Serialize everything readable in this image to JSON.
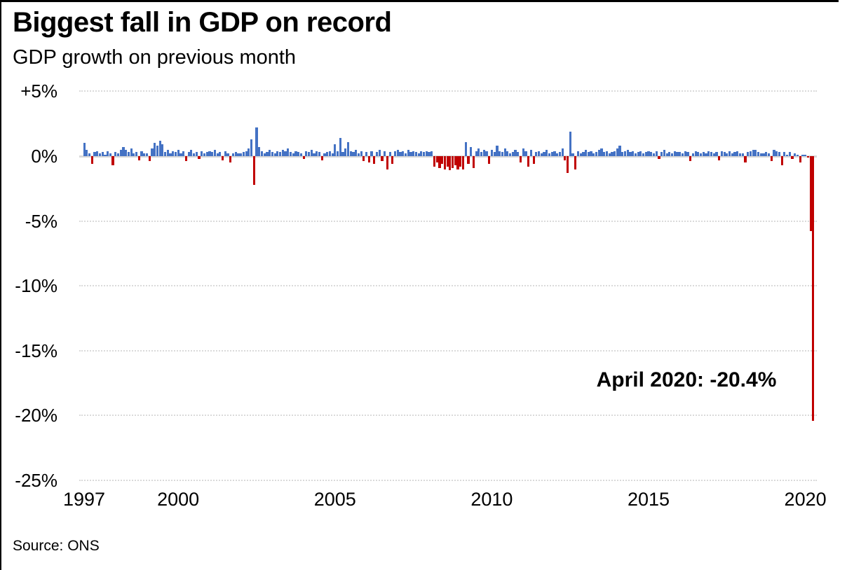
{
  "header": {
    "title": "Biggest fall in GDP on record",
    "subtitle": "GDP growth on previous month"
  },
  "footer": {
    "source": "Source: ONS"
  },
  "colors": {
    "positive_bar": "#4472C4",
    "negative_bar": "#C00000",
    "zero_line": "#d9d9d9",
    "gridline": "#dadada",
    "text": "#000000"
  },
  "chart_data": {
    "type": "bar",
    "title": "Biggest fall in GDP on record",
    "subtitle": "GDP growth on previous month",
    "ylabel": "GDP growth on previous month (%)",
    "xlabel": "",
    "frequency": "monthly",
    "x_start": "1997-01",
    "x_end": "2020-04",
    "ylim": [
      -25,
      5
    ],
    "grid": "horizontal-dotted",
    "legend_position": "none",
    "annotation": {
      "label": "April 2020: -20.4%",
      "date": "2020-04",
      "value": -20.4
    },
    "y_ticks": [
      {
        "label": "+5%",
        "value": 5
      },
      {
        "label": "0%",
        "value": 0
      },
      {
        "label": "-5%",
        "value": -5
      },
      {
        "label": "-10%",
        "value": -10
      },
      {
        "label": "-15%",
        "value": -15
      },
      {
        "label": "-20%",
        "value": -20
      },
      {
        "label": "-25%",
        "value": -25
      }
    ],
    "x_ticks": [
      {
        "label": "1997",
        "year": 1997
      },
      {
        "label": "2000",
        "year": 2000
      },
      {
        "label": "2005",
        "year": 2005
      },
      {
        "label": "2010",
        "year": 2010
      },
      {
        "label": "2015",
        "year": 2015
      },
      {
        "label": "2020",
        "year": 2020
      }
    ],
    "values": [
      1.0,
      0.5,
      0.2,
      -0.6,
      0.3,
      0.4,
      0.2,
      0.3,
      0.1,
      0.4,
      0.2,
      -0.7,
      0.3,
      0.2,
      0.5,
      0.7,
      0.5,
      0.3,
      0.6,
      0.2,
      0.3,
      -0.3,
      0.4,
      0.2,
      0.2,
      -0.4,
      0.6,
      1.0,
      0.8,
      1.2,
      0.9,
      0.3,
      0.5,
      0.2,
      0.4,
      0.3,
      0.5,
      0.2,
      0.4,
      -0.4,
      0.3,
      0.5,
      0.2,
      0.3,
      -0.2,
      0.4,
      0.2,
      0.3,
      0.4,
      0.3,
      0.5,
      0.2,
      0.3,
      -0.3,
      0.4,
      0.2,
      -0.5,
      0.2,
      0.3,
      0.2,
      0.2,
      0.3,
      0.4,
      0.6,
      1.3,
      -2.2,
      2.2,
      0.7,
      0.4,
      0.2,
      0.3,
      0.5,
      0.3,
      0.2,
      0.4,
      0.3,
      0.5,
      0.4,
      0.6,
      0.3,
      0.2,
      0.4,
      0.3,
      0.2,
      -0.2,
      0.4,
      0.3,
      0.5,
      0.2,
      0.4,
      0.3,
      -0.3,
      0.2,
      0.3,
      0.4,
      0.2,
      0.9,
      0.4,
      1.4,
      0.3,
      0.6,
      1.1,
      0.4,
      0.3,
      0.5,
      0.2,
      0.4,
      -0.4,
      0.3,
      -0.5,
      0.4,
      -0.6,
      0.3,
      0.5,
      -0.4,
      0.4,
      -1.0,
      0.3,
      -0.6,
      0.4,
      0.5,
      0.3,
      0.4,
      0.2,
      0.5,
      0.3,
      0.4,
      0.3,
      0.2,
      0.4,
      0.3,
      0.4,
      0.3,
      0.4,
      -0.8,
      -0.5,
      -0.9,
      -0.6,
      -1.0,
      -0.8,
      -1.1,
      -0.9,
      -0.7,
      -1.0,
      -0.8,
      -1.0,
      1.1,
      -0.6,
      0.7,
      -0.9,
      0.4,
      0.6,
      0.3,
      0.5,
      0.4,
      -0.6,
      0.5,
      0.3,
      0.8,
      0.4,
      0.3,
      0.6,
      0.4,
      0.2,
      0.3,
      0.5,
      0.3,
      -0.5,
      0.6,
      0.4,
      -0.8,
      0.5,
      -0.6,
      0.3,
      0.4,
      0.2,
      0.3,
      0.5,
      0.2,
      0.3,
      0.4,
      0.2,
      0.3,
      0.6,
      -0.3,
      -1.3,
      1.9,
      0.2,
      -1.0,
      0.4,
      0.2,
      0.3,
      0.5,
      0.3,
      0.4,
      0.2,
      0.3,
      0.5,
      0.6,
      0.3,
      0.4,
      0.2,
      0.3,
      0.4,
      0.6,
      0.8,
      0.3,
      0.4,
      0.5,
      0.3,
      0.4,
      0.2,
      0.3,
      0.4,
      0.2,
      0.3,
      0.4,
      0.3,
      0.2,
      0.4,
      -0.2,
      0.3,
      0.5,
      0.2,
      0.3,
      0.2,
      0.4,
      0.3,
      0.3,
      0.2,
      0.4,
      0.3,
      -0.4,
      0.2,
      0.4,
      0.3,
      0.2,
      0.3,
      0.2,
      0.4,
      0.3,
      0.2,
      0.3,
      -0.3,
      0.4,
      0.3,
      0.2,
      0.4,
      0.2,
      0.3,
      0.4,
      0.2,
      0.2,
      -0.5,
      0.3,
      0.4,
      0.5,
      0.5,
      0.3,
      0.2,
      0.2,
      0.3,
      0.2,
      -0.4,
      0.5,
      0.4,
      0.3,
      -0.7,
      0.3,
      0.1,
      0.3,
      -0.2,
      0.2,
      0.1,
      -0.5,
      0.1,
      0.1,
      -0.1,
      -5.8,
      -20.4
    ],
    "source": "Source: ONS"
  }
}
